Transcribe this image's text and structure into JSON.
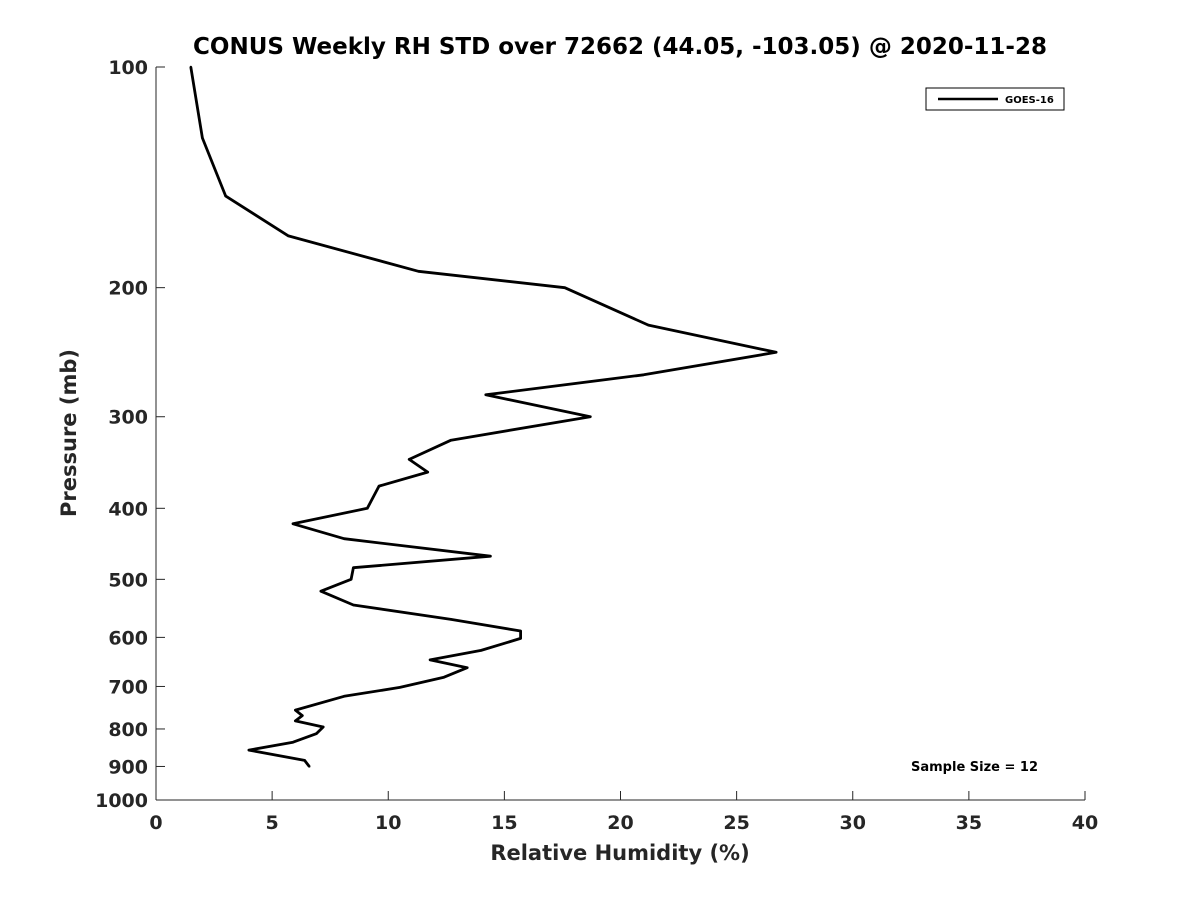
{
  "chart_data": {
    "type": "line",
    "title": "CONUS Weekly RH STD over 72662 (44.05, -103.05) @ 2020-11-28",
    "xlabel": "Relative Humidity (%)",
    "ylabel": "Pressure (mb)",
    "xlim": [
      0,
      40
    ],
    "ylim": [
      100,
      1000
    ],
    "y_scale": "log",
    "y_reversed": true,
    "x_ticks": [
      "0",
      "5",
      "10",
      "15",
      "20",
      "25",
      "30",
      "35",
      "40"
    ],
    "y_ticks": [
      "100",
      "200",
      "300",
      "400",
      "500",
      "600",
      "700",
      "800",
      "900",
      "1000"
    ],
    "grid": false,
    "legend_position": "top-right",
    "annotation": "Sample Size = 12",
    "series": [
      {
        "name": "GOES-16",
        "color": "#000000",
        "points": [
          [
            1.5,
            100
          ],
          [
            2.0,
            125
          ],
          [
            3.0,
            150
          ],
          [
            5.7,
            170
          ],
          [
            11.3,
            190
          ],
          [
            17.6,
            200
          ],
          [
            21.2,
            225
          ],
          [
            26.7,
            245
          ],
          [
            21.0,
            263
          ],
          [
            14.2,
            280
          ],
          [
            18.7,
            300
          ],
          [
            12.7,
            323
          ],
          [
            10.9,
            343
          ],
          [
            11.7,
            357
          ],
          [
            9.6,
            373
          ],
          [
            9.1,
            400
          ],
          [
            5.9,
            420
          ],
          [
            8.1,
            440
          ],
          [
            14.4,
            465
          ],
          [
            8.5,
            482
          ],
          [
            8.4,
            500
          ],
          [
            7.1,
            519
          ],
          [
            8.5,
            542
          ],
          [
            12.7,
            567
          ],
          [
            15.7,
            588
          ],
          [
            15.7,
            602
          ],
          [
            14.0,
            625
          ],
          [
            11.8,
            644
          ],
          [
            13.4,
            660
          ],
          [
            12.4,
            680
          ],
          [
            10.5,
            702
          ],
          [
            8.1,
            722
          ],
          [
            6.0,
            754
          ],
          [
            6.3,
            767
          ],
          [
            6.0,
            780
          ],
          [
            7.2,
            795
          ],
          [
            6.9,
            812
          ],
          [
            5.9,
            834
          ],
          [
            4.0,
            855
          ],
          [
            6.4,
            883
          ],
          [
            6.6,
            900
          ]
        ]
      }
    ]
  }
}
